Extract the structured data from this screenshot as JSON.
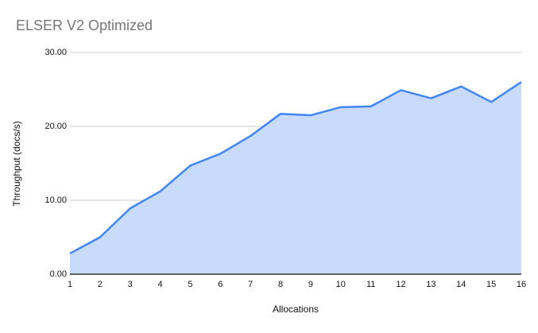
{
  "chart_data": {
    "type": "area",
    "title": "ELSER V2 Optimized",
    "xlabel": "Allocations",
    "ylabel": "Throughput (docs/s)",
    "categories": [
      "1",
      "2",
      "3",
      "4",
      "5",
      "6",
      "7",
      "8",
      "9",
      "10",
      "11",
      "12",
      "13",
      "14",
      "15",
      "16"
    ],
    "series": [
      {
        "name": "Throughput (docs/s)",
        "values": [
          2.8,
          5.0,
          8.9,
          11.2,
          14.7,
          16.3,
          18.7,
          21.7,
          21.5,
          22.6,
          22.7,
          24.9,
          23.8,
          25.4,
          23.3,
          26.0
        ]
      }
    ],
    "ylim": [
      0,
      30
    ],
    "y_ticks": [
      {
        "value": 0,
        "label": "0.00"
      },
      {
        "value": 10,
        "label": "10.00"
      },
      {
        "value": 20,
        "label": "20.00"
      },
      {
        "value": 30,
        "label": "30.00"
      }
    ],
    "grid": true,
    "legend": "none",
    "colors": {
      "line": "#4285f4",
      "fill": "#c8dbfa",
      "gridline": "#cccccc",
      "axis_line": "#333333",
      "title_text": "#757575",
      "tick_text": "#111111"
    }
  }
}
